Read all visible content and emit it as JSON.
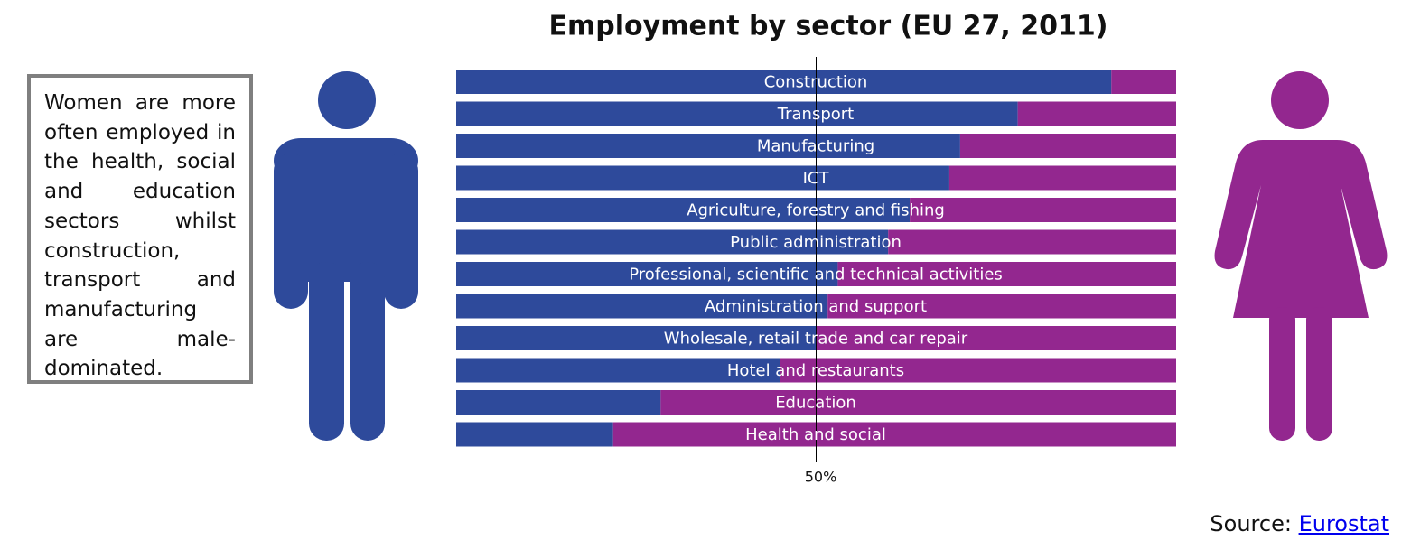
{
  "chart_data": {
    "type": "stacked-bar-horizontal",
    "title": "Employment by sector (EU 27, 2011)",
    "categories": [
      "Construction",
      "Transport",
      "Manufacturing",
      "ICT",
      "Agriculture, forestry and fishing",
      "Public administration",
      "Professional, scientific and technical activities",
      "Administration and support",
      "Wholesale, retail trade and car repair",
      "Hotel and restaurants",
      "Education",
      "Health and social"
    ],
    "series": [
      {
        "color": "#2e4a9b",
        "values": [
          91,
          78,
          70,
          68.5,
          63,
          60,
          53,
          51.6,
          50,
          45,
          28.4,
          21.8
        ]
      },
      {
        "color": "#93278f",
        "values": [
          9,
          22,
          30,
          31.5,
          37,
          40,
          47,
          48.4,
          50,
          55,
          71.6,
          78.2
        ]
      }
    ],
    "xlim": [
      0,
      100
    ],
    "xticks": [
      {
        "value": 50,
        "label": "50%"
      }
    ],
    "annotation": "Women are more often employed in the health, social and education sectors whilst construction, transport and manufacturing are male-dominated.",
    "source_label": "Source:",
    "source_link": "Eurostat"
  }
}
